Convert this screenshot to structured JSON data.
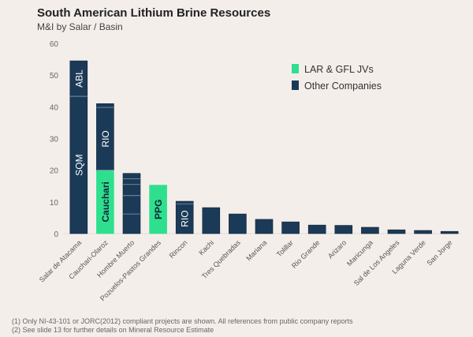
{
  "chart_data": {
    "type": "bar",
    "stacked": true,
    "title": "South American Lithium Brine Resources",
    "subtitle": "M&I by Salar / Basin",
    "xlabel": "",
    "ylabel": "",
    "ylim": [
      0,
      60
    ],
    "yticks": [
      0,
      10,
      20,
      30,
      40,
      50,
      60
    ],
    "grid": false,
    "legend_position": "top-right",
    "colors": {
      "LAR & GFL JVs": "#2ee08e",
      "Other Companies": "#1b3a57"
    },
    "legend": [
      "LAR & GFL JVs",
      "Other Companies"
    ],
    "categories": [
      "Salar de Atacama",
      "Cauchari-Olaroz",
      "Hombre Muerto",
      "Pozuelos-Pastos Grandes",
      "Rincon",
      "Kachi",
      "Tres Quebradas",
      "Mariana",
      "Tolillar",
      "Rio Grande",
      "Arizaro",
      "Maricunga",
      "Sal de Los Angeles",
      "Laguna Verde",
      "San Jorge"
    ],
    "bars": [
      {
        "segments": [
          {
            "group": "Other Companies",
            "value": 43.3,
            "label": "SQM"
          },
          {
            "group": "Other Companies",
            "value": 11.2,
            "label": "ABL"
          }
        ]
      },
      {
        "segments": [
          {
            "group": "LAR & GFL JVs",
            "value": 20.0,
            "label": "Cauchari"
          },
          {
            "group": "Other Companies",
            "value": 19.8,
            "label": "RIO"
          },
          {
            "group": "Other Companies",
            "value": 1.2,
            "label": ""
          }
        ]
      },
      {
        "segments": [
          {
            "group": "Other Companies",
            "value": 6.2,
            "label": ""
          },
          {
            "group": "Other Companies",
            "value": 5.8,
            "label": ""
          },
          {
            "group": "Other Companies",
            "value": 3.5,
            "label": ""
          },
          {
            "group": "Other Companies",
            "value": 1.8,
            "label": ""
          },
          {
            "group": "Other Companies",
            "value": 1.7,
            "label": ""
          }
        ]
      },
      {
        "segments": [
          {
            "group": "LAR & GFL JVs",
            "value": 15.3,
            "label": "PPG"
          }
        ]
      },
      {
        "segments": [
          {
            "group": "Other Companies",
            "value": 9.4,
            "label": "RIO"
          },
          {
            "group": "Other Companies",
            "value": 0.8,
            "label": ""
          }
        ]
      },
      {
        "segments": [
          {
            "group": "Other Companies",
            "value": 8.2,
            "label": ""
          }
        ]
      },
      {
        "segments": [
          {
            "group": "Other Companies",
            "value": 6.2,
            "label": ""
          }
        ]
      },
      {
        "segments": [
          {
            "group": "Other Companies",
            "value": 4.5,
            "label": ""
          }
        ]
      },
      {
        "segments": [
          {
            "group": "Other Companies",
            "value": 3.7,
            "label": ""
          }
        ]
      },
      {
        "segments": [
          {
            "group": "Other Companies",
            "value": 2.7,
            "label": ""
          }
        ]
      },
      {
        "segments": [
          {
            "group": "Other Companies",
            "value": 2.6,
            "label": ""
          }
        ]
      },
      {
        "segments": [
          {
            "group": "Other Companies",
            "value": 2.0,
            "label": ""
          }
        ]
      },
      {
        "segments": [
          {
            "group": "Other Companies",
            "value": 1.2,
            "label": ""
          }
        ]
      },
      {
        "segments": [
          {
            "group": "Other Companies",
            "value": 1.0,
            "label": ""
          }
        ]
      },
      {
        "segments": [
          {
            "group": "Other Companies",
            "value": 0.7,
            "label": ""
          }
        ]
      }
    ]
  },
  "footnotes": [
    "(1)  Only NI-43-101 or JORC(2012) compliant projects are shown. All references from public company reports",
    "(2)  See slide 13 for further details on Mineral Resource Estimate"
  ]
}
